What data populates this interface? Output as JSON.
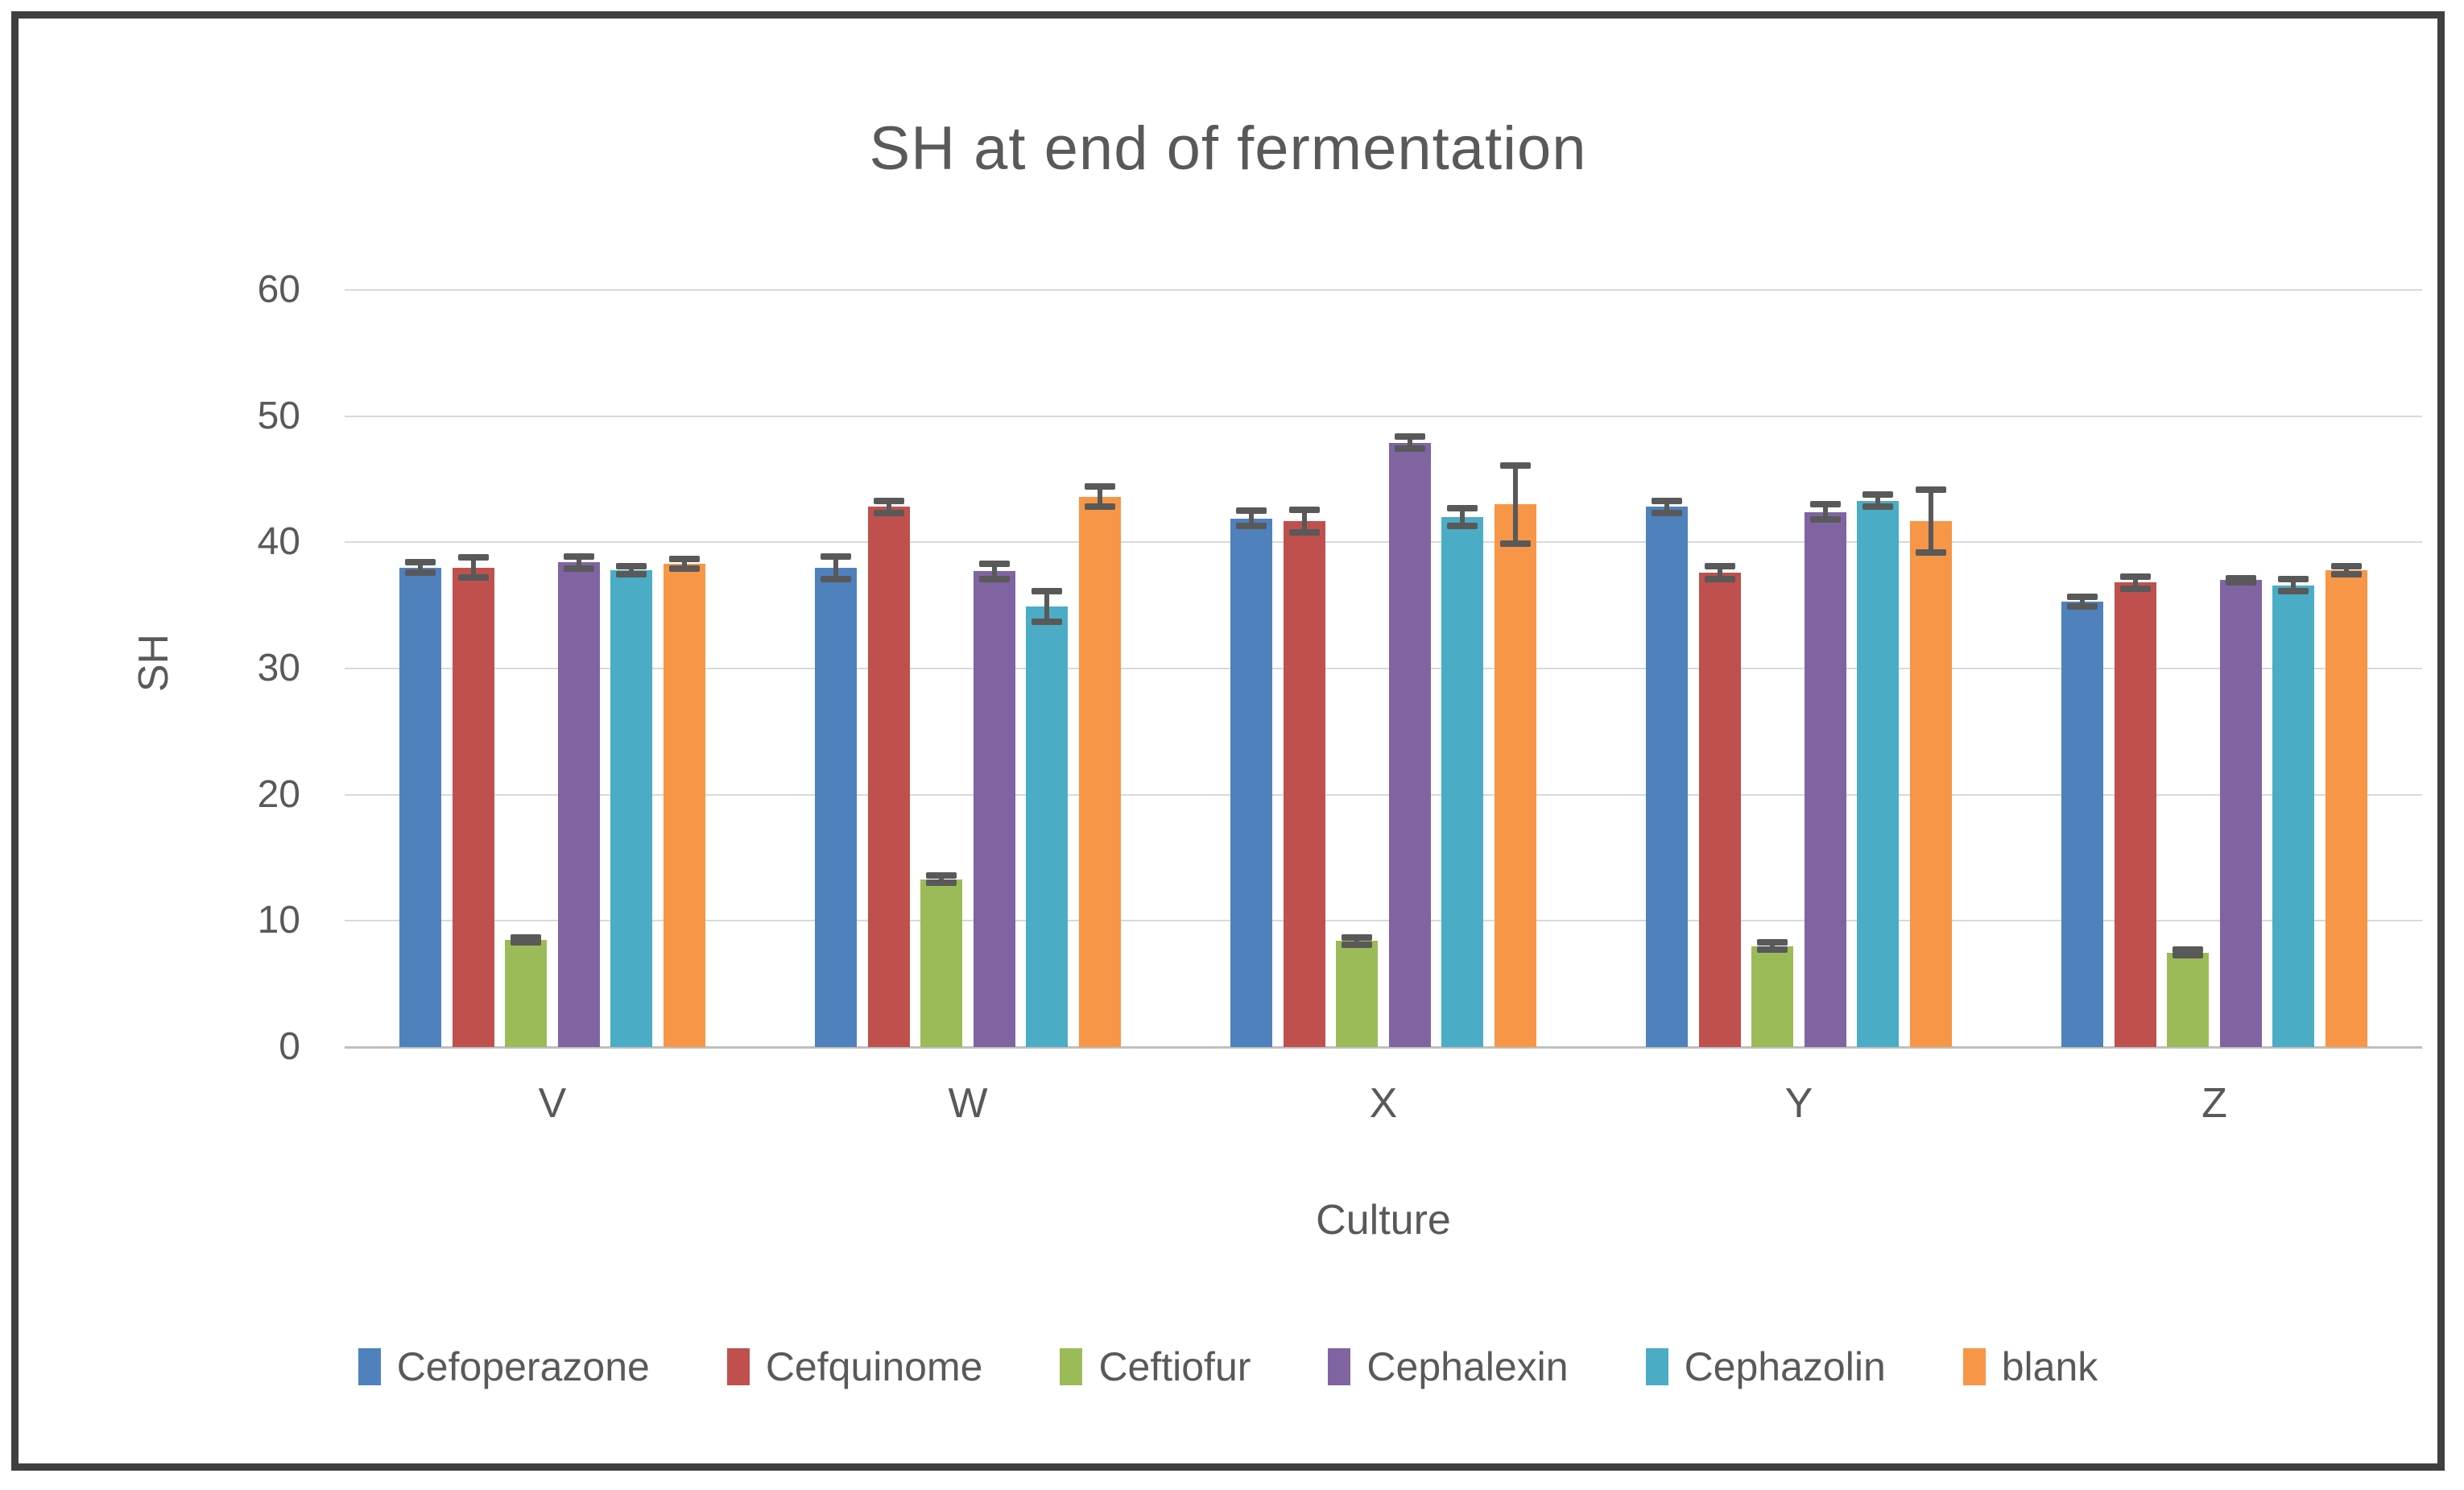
{
  "frame": {
    "border_color": "#3f3f3f",
    "background": "#ffffff"
  },
  "colors": {
    "text": "#595959",
    "gridline": "#d9d9d9",
    "axis_line": "#bfbfbf",
    "error_bar": "#595959"
  },
  "chart_data": {
    "type": "bar",
    "title": "SH at end of fermentation",
    "xlabel": "Culture",
    "ylabel": "SH",
    "categories": [
      "V",
      "W",
      "X",
      "Y",
      "Z"
    ],
    "ylim": [
      0,
      60
    ],
    "yticks": [
      0,
      10,
      20,
      30,
      40,
      50,
      60
    ],
    "grid": true,
    "legend_position": "bottom",
    "error_bars": true,
    "series": [
      {
        "name": "Cefoperazone",
        "color": "#4F81BD",
        "values": [
          38.0,
          38.0,
          41.9,
          42.8,
          35.3
        ],
        "errors": [
          0.4,
          0.9,
          0.6,
          0.5,
          0.4
        ]
      },
      {
        "name": "Cefquinome",
        "color": "#C0504D",
        "values": [
          38.0,
          42.8,
          41.7,
          37.6,
          36.8
        ],
        "errors": [
          0.8,
          0.5,
          0.9,
          0.5,
          0.5
        ]
      },
      {
        "name": "Ceftiofur",
        "color": "#9BBB59",
        "values": [
          8.5,
          13.3,
          8.4,
          8.0,
          7.5
        ],
        "errors": [
          0.2,
          0.3,
          0.3,
          0.3,
          0.2
        ]
      },
      {
        "name": "Cephalexin",
        "color": "#8064A2",
        "values": [
          38.4,
          37.7,
          47.9,
          42.4,
          37.0
        ],
        "errors": [
          0.5,
          0.6,
          0.5,
          0.6,
          0.15
        ]
      },
      {
        "name": "Cephazolin",
        "color": "#4BACC6",
        "values": [
          37.8,
          34.9,
          42.0,
          43.3,
          36.6
        ],
        "errors": [
          0.3,
          1.2,
          0.7,
          0.5,
          0.5
        ]
      },
      {
        "name": "blank",
        "color": "#F79646",
        "values": [
          38.3,
          43.6,
          43.0,
          41.7,
          37.8
        ],
        "errors": [
          0.4,
          0.8,
          3.1,
          2.5,
          0.3
        ]
      }
    ]
  }
}
